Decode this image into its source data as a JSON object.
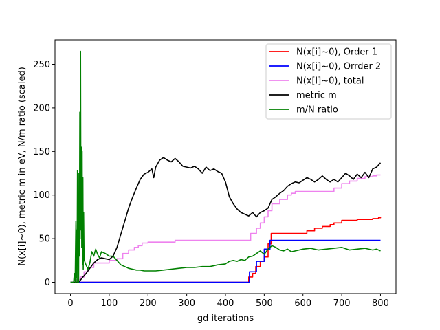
{
  "chart_data": {
    "type": "line",
    "title": "",
    "xlabel": "gd iterations",
    "ylabel": "N(x[i]~0), metric m in eV, N/m ratio (scaled)",
    "xlim": [
      -40,
      840
    ],
    "ylim": [
      -13,
      278
    ],
    "xticks": [
      0,
      100,
      200,
      300,
      400,
      500,
      600,
      700,
      800
    ],
    "yticks": [
      0,
      50,
      100,
      150,
      200,
      250
    ],
    "grid": false,
    "legend_position": "top-right",
    "series": [
      {
        "name": "N(x[i]~0), Order 1",
        "color": "#ff0000",
        "step": true,
        "x": [
          0,
          455,
          460,
          470,
          478,
          490,
          500,
          510,
          518,
          600,
          610,
          630,
          650,
          670,
          680,
          700,
          740,
          780,
          795,
          800
        ],
        "y": [
          0,
          0,
          6,
          10,
          18,
          24,
          29,
          44,
          56,
          56,
          59,
          62,
          64,
          66,
          68,
          71,
          72,
          73,
          74,
          75
        ]
      },
      {
        "name": "N(x[i]~0), Orrder 2",
        "color": "#0000ff",
        "step": true,
        "x": [
          0,
          455,
          462,
          480,
          500,
          515,
          800
        ],
        "y": [
          0,
          0,
          12,
          24,
          38,
          48,
          48
        ]
      },
      {
        "name": "N(x[i]~0), total",
        "color": "#ee82ee",
        "step": true,
        "x": [
          0,
          15,
          25,
          35,
          45,
          60,
          80,
          100,
          120,
          135,
          150,
          165,
          175,
          185,
          200,
          270,
          455,
          465,
          480,
          490,
          500,
          510,
          520,
          540,
          560,
          570,
          580,
          620,
          680,
          700,
          720,
          740,
          760,
          780,
          790,
          800
        ],
        "y": [
          0,
          3,
          6,
          12,
          17,
          22,
          22,
          25,
          27,
          33,
          37,
          40,
          42,
          45,
          46,
          48,
          48,
          56,
          62,
          68,
          75,
          82,
          90,
          95,
          100,
          102,
          104,
          104,
          108,
          113,
          116,
          119,
          121,
          122,
          123,
          123
        ]
      },
      {
        "name": "metric m",
        "color": "#000000",
        "step": false,
        "x": [
          0,
          10,
          20,
          25,
          30,
          40,
          50,
          60,
          70,
          80,
          90,
          100,
          110,
          120,
          130,
          140,
          150,
          160,
          170,
          180,
          190,
          200,
          210,
          215,
          220,
          230,
          240,
          250,
          260,
          270,
          280,
          290,
          300,
          310,
          320,
          330,
          340,
          350,
          360,
          370,
          380,
          390,
          400,
          410,
          420,
          430,
          440,
          450,
          460,
          470,
          480,
          490,
          500,
          510,
          520,
          530,
          540,
          550,
          560,
          570,
          580,
          590,
          600,
          610,
          620,
          630,
          640,
          650,
          660,
          670,
          680,
          690,
          700,
          710,
          720,
          730,
          740,
          750,
          760,
          770,
          780,
          790,
          800
        ],
        "y": [
          0,
          0,
          0,
          2,
          5,
          10,
          16,
          22,
          26,
          28,
          27,
          26,
          30,
          40,
          55,
          70,
          85,
          97,
          108,
          118,
          124,
          126,
          130,
          120,
          132,
          140,
          143,
          140,
          138,
          142,
          138,
          133,
          132,
          131,
          133,
          130,
          125,
          132,
          128,
          130,
          127,
          125,
          115,
          98,
          90,
          84,
          80,
          78,
          76,
          80,
          75,
          80,
          82,
          85,
          95,
          98,
          102,
          105,
          110,
          113,
          115,
          114,
          117,
          120,
          118,
          115,
          118,
          122,
          118,
          115,
          118,
          115,
          120,
          125,
          122,
          118,
          124,
          120,
          126,
          120,
          130,
          132,
          137
        ]
      },
      {
        "name": "m/N ratio",
        "color": "#008000",
        "step": false,
        "x": [
          0,
          5,
          8,
          10,
          12,
          14,
          15,
          16,
          17,
          18,
          19,
          20,
          21,
          22,
          23,
          24,
          25,
          26,
          27,
          28,
          29,
          30,
          31,
          32,
          33,
          34,
          35,
          36,
          38,
          40,
          45,
          50,
          55,
          60,
          65,
          70,
          75,
          80,
          90,
          100,
          110,
          120,
          130,
          140,
          150,
          160,
          170,
          180,
          190,
          200,
          220,
          240,
          260,
          280,
          300,
          320,
          340,
          360,
          380,
          400,
          410,
          420,
          430,
          440,
          450,
          460,
          470,
          480,
          490,
          500,
          510,
          520,
          530,
          540,
          550,
          560,
          570,
          580,
          590,
          600,
          620,
          640,
          660,
          680,
          700,
          720,
          740,
          760,
          780,
          790,
          800
        ],
        "y": [
          0,
          0,
          0,
          10,
          0,
          70,
          5,
          60,
          0,
          128,
          20,
          100,
          0,
          125,
          30,
          195,
          50,
          265,
          60,
          155,
          40,
          150,
          20,
          120,
          15,
          80,
          30,
          25,
          22,
          20,
          15,
          22,
          35,
          30,
          38,
          32,
          28,
          35,
          33,
          30,
          30,
          25,
          20,
          18,
          16,
          15,
          14,
          14,
          13,
          13,
          13,
          14,
          15,
          16,
          17,
          17,
          18,
          18,
          20,
          21,
          24,
          25,
          24,
          26,
          25,
          29,
          30,
          33,
          36,
          32,
          38,
          42,
          40,
          37,
          36,
          38,
          35,
          36,
          37,
          38,
          39,
          37,
          38,
          39,
          40,
          37,
          38,
          39,
          37,
          38,
          36
        ]
      }
    ]
  }
}
